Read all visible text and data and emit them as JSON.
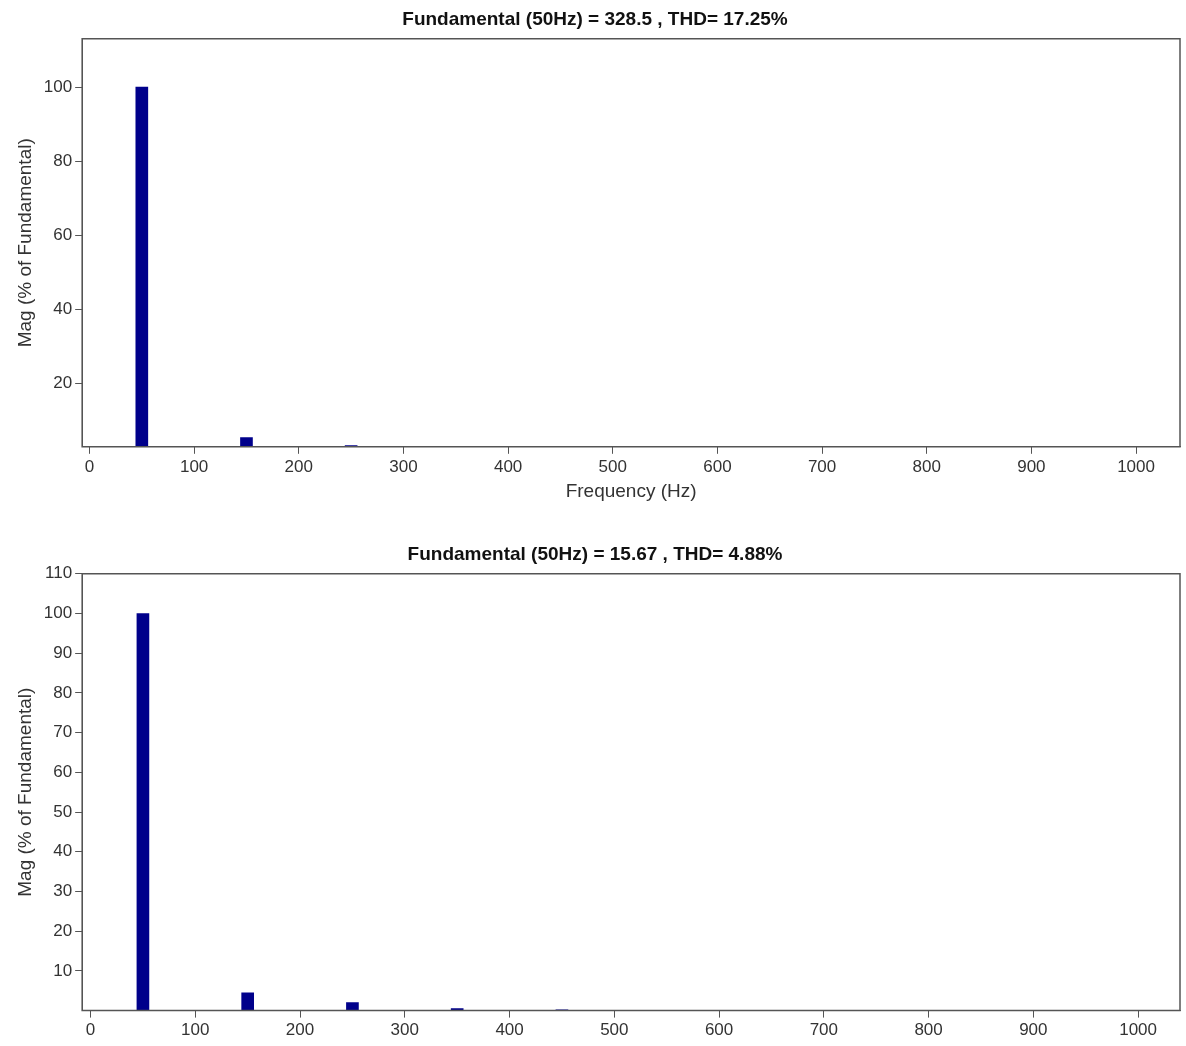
{
  "chart_data": [
    {
      "type": "bar",
      "title": "Fundamental (50Hz) = 328.5 , THD= 17.25%",
      "xlabel": "Frequency (Hz)",
      "ylabel": "Mag (% of Fundamental)",
      "x": [
        50,
        150,
        250
      ],
      "series": [
        {
          "color": "#00008b",
          "values": [
            100,
            5.5,
            3.3
          ]
        }
      ],
      "xlim": [
        -7,
        1042
      ],
      "xticks": [
        0,
        100,
        200,
        300,
        400,
        500,
        600,
        700,
        800,
        900,
        1000
      ],
      "ylim": [
        3,
        113
      ],
      "yticks": [
        20,
        40,
        60,
        80,
        100
      ],
      "grid": false,
      "legend": false
    },
    {
      "type": "bar",
      "title": "Fundamental (50Hz) = 15.67 , THD= 4.88%",
      "ylabel": "Mag (% of Fundamental)",
      "x": [
        50,
        150,
        250,
        350,
        450
      ],
      "series": [
        {
          "color": "#00008b",
          "values": [
            100,
            4.5,
            2.0,
            0.5,
            0.2
          ]
        }
      ],
      "xlim": [
        -8,
        1040
      ],
      "xticks": [
        0,
        100,
        200,
        300,
        400,
        500,
        600,
        700,
        800,
        900,
        1000
      ],
      "ylim": [
        0,
        110
      ],
      "yticks": [
        10,
        20,
        30,
        40,
        50,
        60,
        70,
        80,
        90,
        100,
        110
      ],
      "grid": false,
      "legend": false
    }
  ]
}
